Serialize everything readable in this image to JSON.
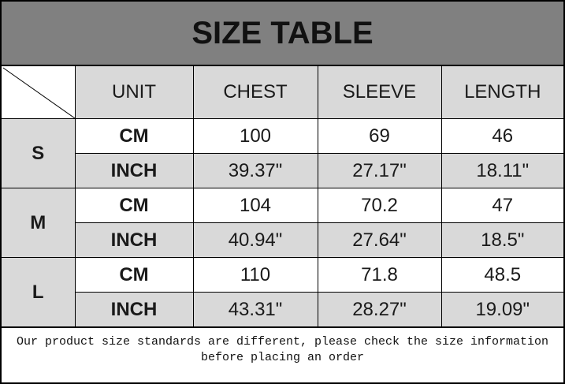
{
  "title": "SIZE TABLE",
  "headers": [
    "UNIT",
    "CHEST",
    "SLEEVE",
    "LENGTH"
  ],
  "rows": [
    {
      "size": "S",
      "cm": [
        "CM",
        "100",
        "69",
        "46"
      ],
      "inch": [
        "INCH",
        "39.37\"",
        "27.17\"",
        "18.11\""
      ]
    },
    {
      "size": "M",
      "cm": [
        "CM",
        "104",
        "70.2",
        "47"
      ],
      "inch": [
        "INCH",
        "40.94\"",
        "27.64\"",
        "18.5\""
      ]
    },
    {
      "size": "L",
      "cm": [
        "CM",
        "110",
        "71.8",
        "48.5"
      ],
      "inch": [
        "INCH",
        "43.31\"",
        "28.27\"",
        "19.09\""
      ]
    }
  ],
  "note_line1": "Our product size standards are different, please check the size information",
  "note_line2": "before placing an order",
  "colors": {
    "title_bg": "#808080",
    "header_bg": "#d9d9d9",
    "border": "#000000"
  }
}
